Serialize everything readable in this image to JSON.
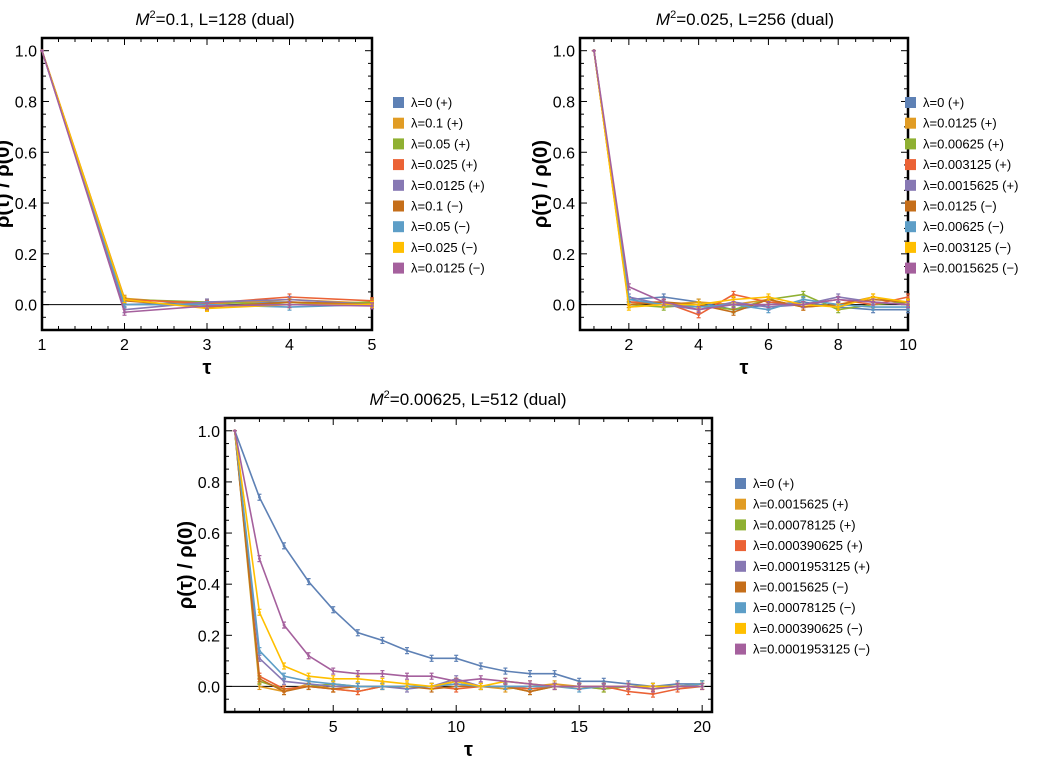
{
  "chart_data": [
    {
      "type": "line",
      "title_italic": "M",
      "title_sup": "2",
      "title_rest": "=0.1, L=128  (dual)",
      "xlabel": "τ",
      "ylabel": "ρ(τ) / ρ(0)",
      "xlim": [
        1,
        5
      ],
      "ylim": [
        -0.1,
        1.05
      ],
      "xticks": [
        "1",
        "2",
        "3",
        "4",
        "5"
      ],
      "yticks": [
        "0.0",
        "0.2",
        "0.4",
        "0.6",
        "0.8",
        "1.0"
      ],
      "x": [
        1,
        2,
        3,
        4,
        5
      ],
      "series": [
        {
          "name": "λ=0 (+)",
          "color": "#5E81B5",
          "values": [
            1.0,
            0.0,
            0.01,
            0.01,
            0.0
          ]
        },
        {
          "name": "λ=0.1 (+)",
          "color": "#E19C24",
          "values": [
            1.0,
            0.025,
            0.0,
            0.02,
            0.005
          ]
        },
        {
          "name": "λ=0.05 (+)",
          "color": "#8FB032",
          "values": [
            1.0,
            0.02,
            0.01,
            0.0,
            0.01
          ]
        },
        {
          "name": "λ=0.025 (+)",
          "color": "#EB6235",
          "values": [
            1.0,
            0.02,
            0.005,
            0.03,
            0.015
          ]
        },
        {
          "name": "λ=0.0125 (+)",
          "color": "#8778B3",
          "values": [
            1.0,
            -0.02,
            0.01,
            0.02,
            0.0
          ]
        },
        {
          "name": "λ=0.1 (−)",
          "color": "#C56E1A",
          "values": [
            1.0,
            0.015,
            -0.01,
            0.01,
            0.0
          ]
        },
        {
          "name": "λ=0.05 (−)",
          "color": "#5D9EC7",
          "values": [
            1.0,
            0.0,
            0.0,
            -0.01,
            0.0
          ]
        },
        {
          "name": "λ=0.025 (−)",
          "color": "#FFBF00",
          "values": [
            1.0,
            0.02,
            -0.015,
            0.0,
            0.0
          ]
        },
        {
          "name": "λ=0.0125 (−)",
          "color": "#A5609D",
          "values": [
            1.0,
            -0.03,
            -0.005,
            0.0,
            -0.005
          ]
        }
      ]
    },
    {
      "type": "line",
      "title_italic": "M",
      "title_sup": "2",
      "title_rest": "=0.025, L=256  (dual)",
      "xlabel": "τ",
      "ylabel": "ρ(τ) / ρ(0)",
      "xlim": [
        0.6,
        10
      ],
      "ylim": [
        -0.1,
        1.05
      ],
      "xticks": [
        "2",
        "4",
        "6",
        "8",
        "10"
      ],
      "yticks": [
        "0.0",
        "0.2",
        "0.4",
        "0.6",
        "0.8",
        "1.0"
      ],
      "x": [
        1,
        2,
        3,
        4,
        5,
        6,
        7,
        8,
        9,
        10
      ],
      "series": [
        {
          "name": "λ=0 (+)",
          "color": "#5E81B5",
          "values": [
            1.0,
            0.02,
            0.03,
            0.01,
            -0.02,
            0.0,
            0.01,
            -0.01,
            -0.02,
            -0.02
          ]
        },
        {
          "name": "λ=0.0125 (+)",
          "color": "#E19C24",
          "values": [
            1.0,
            0.01,
            0.0,
            0.01,
            0.0,
            0.02,
            -0.01,
            0.0,
            0.03,
            0.0
          ]
        },
        {
          "name": "λ=0.00625 (+)",
          "color": "#8FB032",
          "values": [
            1.0,
            0.0,
            -0.01,
            0.0,
            -0.02,
            0.02,
            0.04,
            -0.02,
            0.0,
            0.01
          ]
        },
        {
          "name": "λ=0.003125 (+)",
          "color": "#EB6235",
          "values": [
            1.0,
            0.01,
            0.01,
            -0.04,
            0.04,
            0.01,
            0.0,
            0.02,
            0.0,
            0.03
          ]
        },
        {
          "name": "λ=0.0015625 (+)",
          "color": "#8778B3",
          "values": [
            1.0,
            0.03,
            0.0,
            -0.02,
            0.01,
            -0.01,
            0.0,
            0.03,
            0.01,
            0.0
          ]
        },
        {
          "name": "λ=0.0125 (−)",
          "color": "#C56E1A",
          "values": [
            1.0,
            0.0,
            0.01,
            0.0,
            -0.03,
            0.02,
            -0.01,
            0.0,
            0.02,
            0.01
          ]
        },
        {
          "name": "λ=0.00625 (−)",
          "color": "#5D9EC7",
          "values": [
            1.0,
            0.02,
            0.0,
            -0.01,
            0.0,
            -0.02,
            0.02,
            0.0,
            -0.01,
            -0.01
          ]
        },
        {
          "name": "λ=0.003125 (−)",
          "color": "#FFBF00",
          "values": [
            1.0,
            -0.01,
            0.0,
            0.0,
            0.02,
            0.03,
            0.0,
            -0.01,
            0.03,
            0.01
          ]
        },
        {
          "name": "λ=0.0015625 (−)",
          "color": "#A5609D",
          "values": [
            1.0,
            0.07,
            0.01,
            -0.02,
            0.0,
            0.0,
            0.0,
            0.02,
            0.01,
            0.0
          ]
        }
      ]
    },
    {
      "type": "line",
      "title_italic": "M",
      "title_sup": "2",
      "title_rest": "=0.00625, L=512  (dual)",
      "xlabel": "τ",
      "ylabel": "ρ(τ) / ρ(0)",
      "xlim": [
        0.6,
        20.4
      ],
      "ylim": [
        -0.1,
        1.05
      ],
      "xticks": [
        "5",
        "10",
        "15",
        "20"
      ],
      "yticks": [
        "0.0",
        "0.2",
        "0.4",
        "0.6",
        "0.8",
        "1.0"
      ],
      "x": [
        1,
        2,
        3,
        4,
        5,
        6,
        7,
        8,
        9,
        10,
        11,
        12,
        13,
        14,
        15,
        16,
        17,
        18,
        19,
        20
      ],
      "series": [
        {
          "name": "λ=0 (+)",
          "color": "#5E81B5",
          "values": [
            1.0,
            0.74,
            0.55,
            0.41,
            0.3,
            0.21,
            0.18,
            0.14,
            0.11,
            0.11,
            0.08,
            0.06,
            0.05,
            0.05,
            0.02,
            0.02,
            0.01,
            0.0,
            0.01,
            0.01
          ]
        },
        {
          "name": "λ=0.0015625 (+)",
          "color": "#E19C24",
          "values": [
            1.0,
            0.0,
            -0.02,
            0.01,
            -0.01,
            -0.02,
            0.0,
            0.0,
            0.0,
            0.01,
            0.0,
            -0.01,
            0.0,
            0.01,
            0.0,
            -0.01,
            0.0,
            -0.01,
            0.0,
            0.01
          ]
        },
        {
          "name": "λ=0.00078125 (+)",
          "color": "#8FB032",
          "values": [
            1.0,
            0.02,
            -0.01,
            0.0,
            0.01,
            0.0,
            0.0,
            0.0,
            0.0,
            0.02,
            0.0,
            0.0,
            -0.02,
            0.0,
            0.0,
            -0.01,
            0.0,
            0.0,
            0.0,
            0.01
          ]
        },
        {
          "name": "λ=0.000390625 (+)",
          "color": "#EB6235",
          "values": [
            1.0,
            0.04,
            -0.01,
            0.0,
            -0.01,
            -0.02,
            0.0,
            0.0,
            0.0,
            -0.01,
            0.0,
            0.0,
            -0.01,
            0.0,
            0.0,
            0.0,
            -0.02,
            -0.03,
            -0.01,
            0.0
          ]
        },
        {
          "name": "λ=0.0001953125 (+)",
          "color": "#8778B3",
          "values": [
            1.0,
            0.11,
            0.02,
            0.01,
            0.0,
            0.0,
            0.0,
            -0.01,
            0.0,
            0.03,
            0.0,
            0.0,
            0.0,
            0.0,
            0.0,
            0.0,
            0.0,
            0.0,
            0.0,
            0.0
          ]
        },
        {
          "name": "λ=0.0015625 (−)",
          "color": "#C56E1A",
          "values": [
            1.0,
            0.03,
            -0.02,
            0.0,
            -0.01,
            0.0,
            0.0,
            0.0,
            -0.01,
            0.0,
            0.0,
            0.0,
            -0.02,
            0.0,
            0.0,
            0.0,
            0.0,
            0.0,
            0.0,
            0.0
          ]
        },
        {
          "name": "λ=0.00078125 (−)",
          "color": "#5D9EC7",
          "values": [
            1.0,
            0.14,
            0.04,
            0.02,
            0.01,
            0.0,
            0.0,
            0.0,
            0.0,
            0.01,
            0.0,
            0.0,
            0.0,
            0.0,
            -0.01,
            0.0,
            0.0,
            0.0,
            0.0,
            0.01
          ]
        },
        {
          "name": "λ=0.000390625 (−)",
          "color": "#FFBF00",
          "values": [
            1.0,
            0.29,
            0.08,
            0.04,
            0.03,
            0.03,
            0.02,
            0.01,
            0.0,
            0.02,
            0.0,
            0.02,
            0.01,
            0.0,
            0.0,
            0.0,
            0.0,
            0.0,
            0.0,
            0.0
          ]
        },
        {
          "name": "λ=0.0001953125 (−)",
          "color": "#A5609D",
          "values": [
            1.0,
            0.5,
            0.24,
            0.12,
            0.06,
            0.05,
            0.05,
            0.04,
            0.04,
            0.02,
            0.03,
            0.02,
            0.01,
            0.0,
            0.0,
            0.0,
            0.0,
            -0.01,
            0.0,
            0.0
          ]
        }
      ]
    }
  ]
}
